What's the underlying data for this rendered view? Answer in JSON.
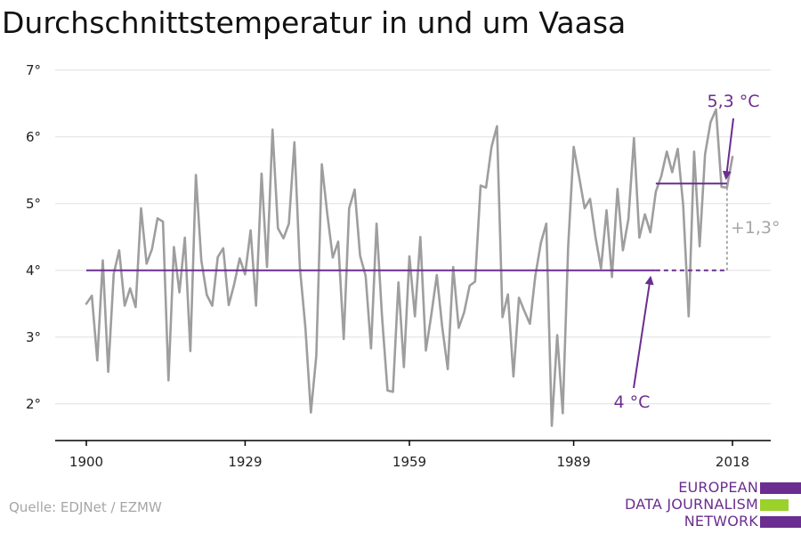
{
  "title": "Durchschnittstemperatur in und um Vaasa",
  "source": "Quelle: EDJNet / EZMW",
  "logo": {
    "lines": [
      "EUROPEAN",
      "DATA JOURNALISM",
      "NETWORK"
    ],
    "colors": {
      "purple": "#6b2d8f",
      "green": "#9ad12a"
    }
  },
  "colors": {
    "series": "#9e9e9e",
    "accent": "#6b2d8f",
    "grid": "#e0e0e0",
    "axis": "#000000"
  },
  "chart_data": {
    "type": "line",
    "x_ticks": [
      1900,
      1929,
      1959,
      1989,
      2018
    ],
    "y_ticks": [
      2,
      3,
      4,
      5,
      6,
      7
    ],
    "y_tick_labels": [
      "2°",
      "3°",
      "4°",
      "5°",
      "6°",
      "7°"
    ],
    "xlim": [
      1894,
      2024
    ],
    "ylim": [
      1.45,
      7.25
    ],
    "grid": true,
    "series": [
      {
        "x_start": 1900,
        "values": [
          3.5,
          3.62,
          2.65,
          4.15,
          2.48,
          3.95,
          4.3,
          3.47,
          3.73,
          3.45,
          4.93,
          4.1,
          4.32,
          4.78,
          4.73,
          2.35,
          4.35,
          3.67,
          4.49,
          2.79,
          5.43,
          4.15,
          3.63,
          3.47,
          4.2,
          4.33,
          3.48,
          3.79,
          4.18,
          3.94,
          4.6,
          3.47,
          5.45,
          4.05,
          6.11,
          4.63,
          4.48,
          4.7,
          5.92,
          4.05,
          3.15,
          1.87,
          2.72,
          5.59,
          4.85,
          4.19,
          4.43,
          2.97,
          4.93,
          5.21,
          4.22,
          3.92,
          2.83,
          4.7,
          3.32,
          2.2,
          2.18,
          3.82,
          2.55,
          4.21,
          3.31,
          4.5,
          2.8,
          3.33,
          3.93,
          3.15,
          2.52,
          4.05,
          3.14,
          3.37,
          3.77,
          3.83,
          5.27,
          5.24,
          5.85,
          6.16,
          3.3,
          3.64,
          2.41,
          3.59,
          3.39,
          3.2,
          3.92,
          4.41,
          4.7,
          1.67,
          3.03,
          1.86,
          4.36,
          5.85,
          5.4,
          4.93,
          5.07,
          4.49,
          4.03,
          4.9,
          3.9,
          5.22,
          4.3,
          4.77,
          5.98,
          4.49,
          4.84,
          4.57,
          5.18,
          5.41,
          5.78,
          5.47,
          5.82,
          4.98,
          3.31,
          5.78,
          4.36,
          5.74,
          6.22,
          6.41,
          5.25,
          5.24,
          5.7
        ]
      }
    ],
    "annotations": {
      "baseline": {
        "value": 4,
        "label": "4 °C",
        "x_from": 1900,
        "x_to": 2004,
        "dash_to": 2017
      },
      "recent": {
        "value": 5.3,
        "label": "5,3 °C",
        "x_from": 2004,
        "x_to": 2017
      },
      "difference": {
        "label": "+1,3°",
        "x": 2017
      }
    }
  }
}
